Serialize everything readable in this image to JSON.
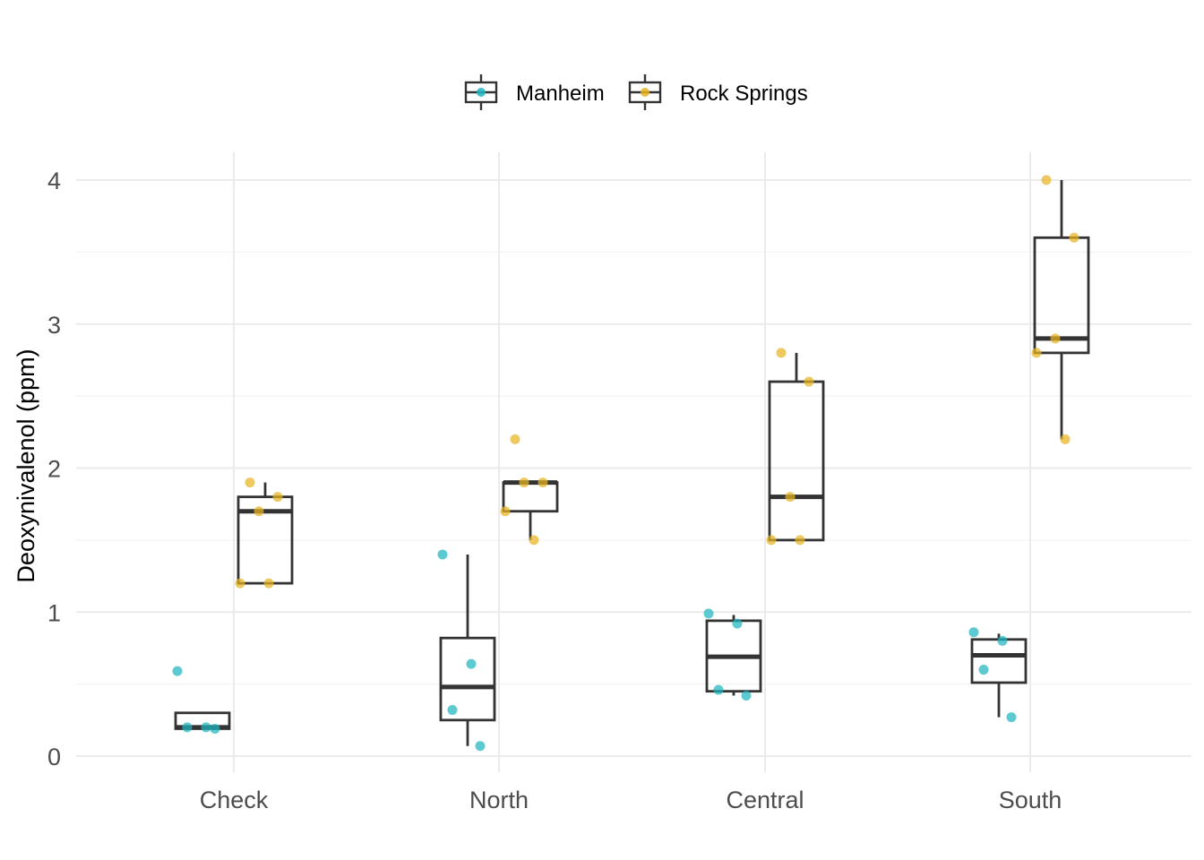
{
  "chart_data": {
    "type": "box",
    "categories": [
      "Check",
      "North",
      "Central",
      "South"
    ],
    "ylabel": "Deoxynivalenol (ppm)",
    "xlabel": "",
    "ylim": [
      -0.1,
      4.2
    ],
    "yticks": [
      "0",
      "1",
      "2",
      "3",
      "4"
    ],
    "grid": true,
    "legend_position": "top",
    "colors": {
      "Manheim": "#1fb5c0",
      "Rock Springs": "#e6b422",
      "box_stroke": "#333333"
    },
    "series": [
      {
        "name": "Manheim",
        "boxes": [
          {
            "category": "Check",
            "min": 0.19,
            "q1": 0.19,
            "median": 0.2,
            "q3": 0.3,
            "max": 0.3
          },
          {
            "category": "North",
            "min": 0.07,
            "q1": 0.25,
            "median": 0.48,
            "q3": 0.82,
            "max": 1.4
          },
          {
            "category": "Central",
            "min": 0.42,
            "q1": 0.45,
            "median": 0.69,
            "q3": 0.94,
            "max": 0.98
          },
          {
            "category": "South",
            "min": 0.27,
            "q1": 0.51,
            "median": 0.7,
            "q3": 0.81,
            "max": 0.85
          }
        ],
        "points": [
          {
            "category": "Check",
            "y": 0.59
          },
          {
            "category": "Check",
            "y": 0.2
          },
          {
            "category": "Check",
            "y": 0.2
          },
          {
            "category": "Check",
            "y": 0.19
          },
          {
            "category": "North",
            "y": 1.4
          },
          {
            "category": "North",
            "y": 0.64
          },
          {
            "category": "North",
            "y": 0.32
          },
          {
            "category": "North",
            "y": 0.07
          },
          {
            "category": "Central",
            "y": 0.99
          },
          {
            "category": "Central",
            "y": 0.92
          },
          {
            "category": "Central",
            "y": 0.46
          },
          {
            "category": "Central",
            "y": 0.42
          },
          {
            "category": "South",
            "y": 0.86
          },
          {
            "category": "South",
            "y": 0.8
          },
          {
            "category": "South",
            "y": 0.6
          },
          {
            "category": "South",
            "y": 0.27
          }
        ]
      },
      {
        "name": "Rock Springs",
        "boxes": [
          {
            "category": "Check",
            "min": 1.2,
            "q1": 1.2,
            "median": 1.7,
            "q3": 1.8,
            "max": 1.9
          },
          {
            "category": "North",
            "min": 1.5,
            "q1": 1.7,
            "median": 1.9,
            "q3": 1.9,
            "max": 1.9
          },
          {
            "category": "Central",
            "min": 1.5,
            "q1": 1.5,
            "median": 1.8,
            "q3": 2.6,
            "max": 2.8
          },
          {
            "category": "South",
            "min": 2.2,
            "q1": 2.8,
            "median": 2.9,
            "q3": 3.6,
            "max": 4.0
          }
        ],
        "points": [
          {
            "category": "Check",
            "y": 1.9
          },
          {
            "category": "Check",
            "y": 1.8
          },
          {
            "category": "Check",
            "y": 1.7
          },
          {
            "category": "Check",
            "y": 1.2
          },
          {
            "category": "Check",
            "y": 1.2
          },
          {
            "category": "North",
            "y": 2.2
          },
          {
            "category": "North",
            "y": 1.9
          },
          {
            "category": "North",
            "y": 1.9
          },
          {
            "category": "North",
            "y": 1.7
          },
          {
            "category": "North",
            "y": 1.5
          },
          {
            "category": "Central",
            "y": 2.8
          },
          {
            "category": "Central",
            "y": 2.6
          },
          {
            "category": "Central",
            "y": 1.8
          },
          {
            "category": "Central",
            "y": 1.5
          },
          {
            "category": "Central",
            "y": 1.5
          },
          {
            "category": "South",
            "y": 4.0
          },
          {
            "category": "South",
            "y": 3.6
          },
          {
            "category": "South",
            "y": 2.9
          },
          {
            "category": "South",
            "y": 2.8
          },
          {
            "category": "South",
            "y": 2.2
          }
        ]
      }
    ]
  }
}
